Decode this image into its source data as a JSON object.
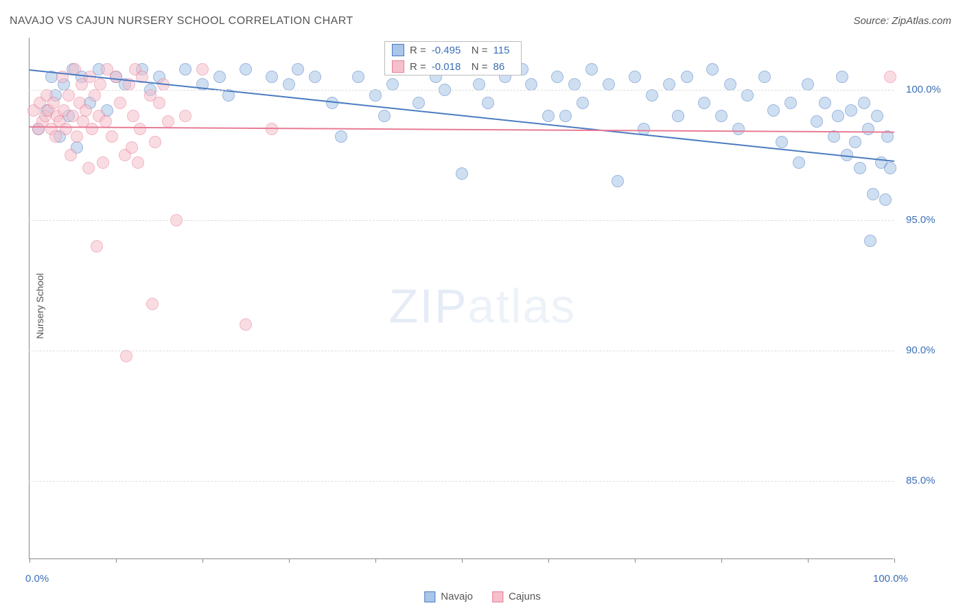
{
  "title": "NAVAJO VS CAJUN NURSERY SCHOOL CORRELATION CHART",
  "source": "Source: ZipAtlas.com",
  "ylabel": "Nursery School",
  "watermark_bold": "ZIP",
  "watermark_thin": "atlas",
  "chart": {
    "type": "scatter",
    "xlim": [
      0,
      100
    ],
    "ylim": [
      82,
      102
    ],
    "x_ticks": [
      0,
      10,
      20,
      30,
      40,
      50,
      60,
      70,
      80,
      90,
      100
    ],
    "x_tick_labels": {
      "0": "0.0%",
      "100": "100.0%"
    },
    "y_ticks": [
      85,
      90,
      95,
      100
    ],
    "y_tick_labels": {
      "85": "85.0%",
      "90": "90.0%",
      "95": "95.0%",
      "100": "100.0%"
    },
    "grid_color": "#dddddd",
    "background_color": "#ffffff",
    "axis_color": "#888888",
    "tick_label_color": "#3b6fb6",
    "marker_radius": 9,
    "marker_opacity": 0.55,
    "series": [
      {
        "name": "Navajo",
        "fill_color": "#a9c5e8",
        "stroke_color": "#4a7bc0",
        "R": "-0.495",
        "N": "115",
        "trend": {
          "x1": 0,
          "y1": 100.8,
          "x2": 100,
          "y2": 97.3
        },
        "points": [
          [
            1,
            98.5
          ],
          [
            2,
            99.2
          ],
          [
            2.5,
            100.5
          ],
          [
            3,
            99.8
          ],
          [
            3.5,
            98.2
          ],
          [
            4,
            100.2
          ],
          [
            4.5,
            99.0
          ],
          [
            5,
            100.8
          ],
          [
            5.5,
            97.8
          ],
          [
            6,
            100.5
          ],
          [
            7,
            99.5
          ],
          [
            8,
            100.8
          ],
          [
            9,
            99.2
          ],
          [
            10,
            100.5
          ],
          [
            11,
            100.2
          ],
          [
            13,
            100.8
          ],
          [
            14,
            100.0
          ],
          [
            15,
            100.5
          ],
          [
            18,
            100.8
          ],
          [
            20,
            100.2
          ],
          [
            22,
            100.5
          ],
          [
            23,
            99.8
          ],
          [
            25,
            100.8
          ],
          [
            28,
            100.5
          ],
          [
            30,
            100.2
          ],
          [
            31,
            100.8
          ],
          [
            33,
            100.5
          ],
          [
            35,
            99.5
          ],
          [
            36,
            98.2
          ],
          [
            38,
            100.5
          ],
          [
            40,
            99.8
          ],
          [
            41,
            99.0
          ],
          [
            42,
            100.2
          ],
          [
            44,
            100.8
          ],
          [
            45,
            99.5
          ],
          [
            47,
            100.5
          ],
          [
            48,
            100.0
          ],
          [
            50,
            96.8
          ],
          [
            52,
            100.2
          ],
          [
            53,
            99.5
          ],
          [
            55,
            100.5
          ],
          [
            57,
            100.8
          ],
          [
            58,
            100.2
          ],
          [
            60,
            99.0
          ],
          [
            61,
            100.5
          ],
          [
            62,
            99.0
          ],
          [
            63,
            100.2
          ],
          [
            64,
            99.5
          ],
          [
            65,
            100.8
          ],
          [
            67,
            100.2
          ],
          [
            68,
            96.5
          ],
          [
            70,
            100.5
          ],
          [
            71,
            98.5
          ],
          [
            72,
            99.8
          ],
          [
            74,
            100.2
          ],
          [
            75,
            99.0
          ],
          [
            76,
            100.5
          ],
          [
            78,
            99.5
          ],
          [
            79,
            100.8
          ],
          [
            80,
            99.0
          ],
          [
            81,
            100.2
          ],
          [
            82,
            98.5
          ],
          [
            83,
            99.8
          ],
          [
            85,
            100.5
          ],
          [
            86,
            99.2
          ],
          [
            87,
            98.0
          ],
          [
            88,
            99.5
          ],
          [
            89,
            97.2
          ],
          [
            90,
            100.2
          ],
          [
            91,
            98.8
          ],
          [
            92,
            99.5
          ],
          [
            93,
            98.2
          ],
          [
            93.5,
            99.0
          ],
          [
            94,
            100.5
          ],
          [
            94.5,
            97.5
          ],
          [
            95,
            99.2
          ],
          [
            95.5,
            98.0
          ],
          [
            96,
            97.0
          ],
          [
            96.5,
            99.5
          ],
          [
            97,
            98.5
          ],
          [
            97.2,
            94.2
          ],
          [
            97.5,
            96.0
          ],
          [
            98,
            99.0
          ],
          [
            98.5,
            97.2
          ],
          [
            99,
            95.8
          ],
          [
            99.2,
            98.2
          ],
          [
            99.5,
            97.0
          ]
        ]
      },
      {
        "name": "Cajuns",
        "fill_color": "#f5c0cc",
        "stroke_color": "#e87a94",
        "R": "-0.018",
        "N": "86",
        "trend": {
          "x1": 0,
          "y1": 98.6,
          "x2": 100,
          "y2": 98.4
        },
        "points": [
          [
            0.5,
            99.2
          ],
          [
            1,
            98.5
          ],
          [
            1.2,
            99.5
          ],
          [
            1.5,
            98.8
          ],
          [
            1.8,
            99.0
          ],
          [
            2,
            99.8
          ],
          [
            2.2,
            99.2
          ],
          [
            2.5,
            98.5
          ],
          [
            2.8,
            99.5
          ],
          [
            3,
            98.2
          ],
          [
            3.2,
            99.0
          ],
          [
            3.5,
            98.8
          ],
          [
            3.8,
            100.5
          ],
          [
            4,
            99.2
          ],
          [
            4.2,
            98.5
          ],
          [
            4.5,
            99.8
          ],
          [
            4.8,
            97.5
          ],
          [
            5,
            99.0
          ],
          [
            5.2,
            100.8
          ],
          [
            5.5,
            98.2
          ],
          [
            5.8,
            99.5
          ],
          [
            6,
            100.2
          ],
          [
            6.2,
            98.8
          ],
          [
            6.5,
            99.2
          ],
          [
            6.8,
            97.0
          ],
          [
            7,
            100.5
          ],
          [
            7.2,
            98.5
          ],
          [
            7.5,
            99.8
          ],
          [
            7.8,
            94.0
          ],
          [
            8,
            99.0
          ],
          [
            8.2,
            100.2
          ],
          [
            8.5,
            97.2
          ],
          [
            8.8,
            98.8
          ],
          [
            9,
            100.8
          ],
          [
            9.5,
            98.2
          ],
          [
            10,
            100.5
          ],
          [
            10.5,
            99.5
          ],
          [
            11,
            97.5
          ],
          [
            11.2,
            89.8
          ],
          [
            11.5,
            100.2
          ],
          [
            11.8,
            97.8
          ],
          [
            12,
            99.0
          ],
          [
            12.2,
            100.8
          ],
          [
            12.5,
            97.2
          ],
          [
            12.8,
            98.5
          ],
          [
            13,
            100.5
          ],
          [
            14,
            99.8
          ],
          [
            14.2,
            91.8
          ],
          [
            14.5,
            98.0
          ],
          [
            15,
            99.5
          ],
          [
            15.5,
            100.2
          ],
          [
            16,
            98.8
          ],
          [
            17,
            95.0
          ],
          [
            18,
            99.0
          ],
          [
            20,
            100.8
          ],
          [
            25,
            91.0
          ],
          [
            28,
            98.5
          ],
          [
            99.5,
            100.5
          ]
        ]
      }
    ]
  },
  "legend": {
    "items": [
      {
        "label": "Navajo",
        "fill": "#a9c5e8",
        "stroke": "#4a7bc0"
      },
      {
        "label": "Cajuns",
        "fill": "#f5c0cc",
        "stroke": "#e87a94"
      }
    ]
  },
  "corr_box": {
    "rows": [
      {
        "fill": "#a9c5e8",
        "stroke": "#4a7bc0",
        "R": "-0.495",
        "N": "115"
      },
      {
        "fill": "#f5c0cc",
        "stroke": "#e87a94",
        "R": "-0.018",
        "N": "86"
      }
    ],
    "R_label": "R =",
    "N_label": "N ="
  }
}
